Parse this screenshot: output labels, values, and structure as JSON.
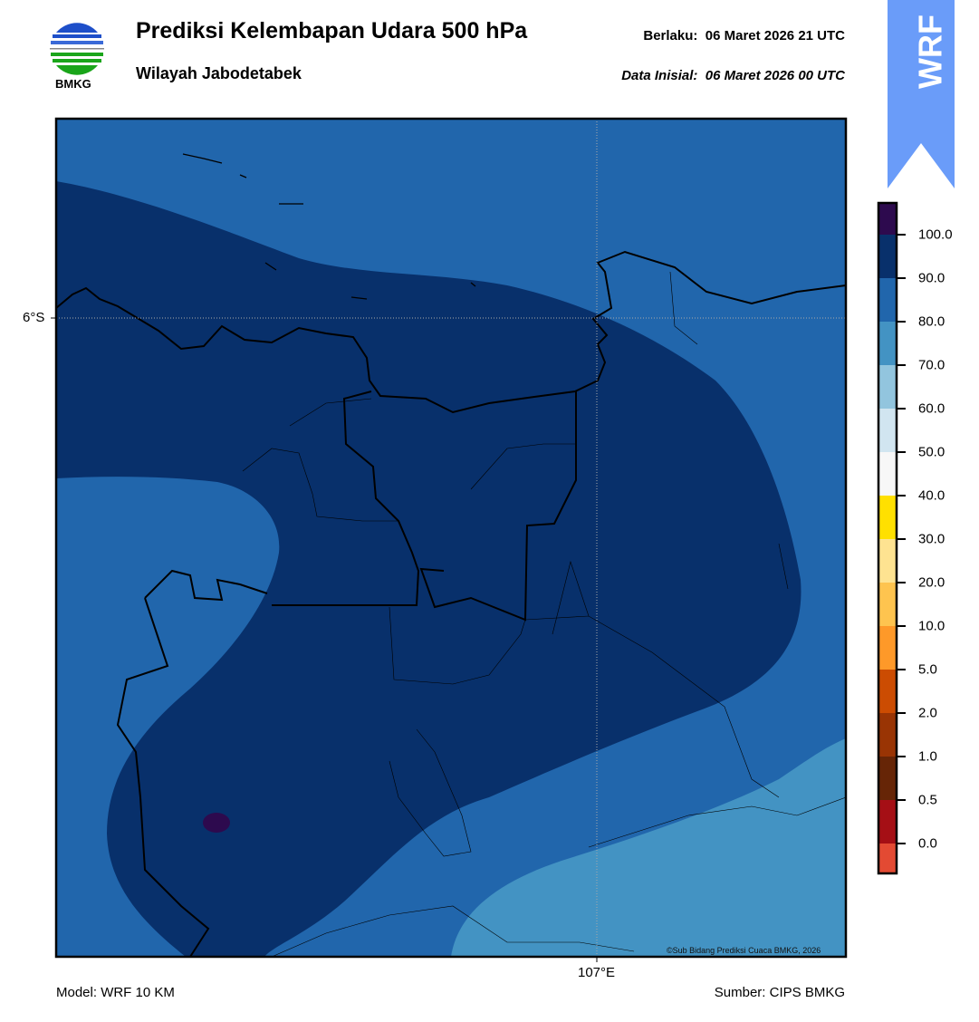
{
  "header": {
    "logo_text": "BMKG",
    "title": "Prediksi Kelembapan Udara 500 hPa",
    "subtitle": "Wilayah Jabodetabek",
    "valid_label": "Berlaku:",
    "valid_time": "06 Maret 2026 21 UTC",
    "init_label": "Data Inisial:",
    "init_time": "06 Maret 2026 00 UTC"
  },
  "badge": {
    "text": "WRF",
    "color": "#6a9cf9"
  },
  "map": {
    "lat_label": "6°S",
    "lon_label": "107°E",
    "copyright": "©Sub Bidang Prediksi Cuaca BMKG, 2026",
    "field_colors": {
      "80-90": "#2166ac",
      "90-100": "#08306b",
      "70-80": "#4393c3",
      "100+": "#2d0a4e"
    }
  },
  "colorbar": {
    "labels": [
      "100.0",
      "90.0",
      "80.0",
      "70.0",
      "60.0",
      "50.0",
      "40.0",
      "30.0",
      "20.0",
      "10.0",
      "5.0",
      "2.0",
      "1.0",
      "0.5",
      "0.0"
    ],
    "colors": [
      "#2d0a4e",
      "#08306b",
      "#2166ac",
      "#4393c3",
      "#92c5de",
      "#d1e5f0",
      "#f7f7f7",
      "#ffe000",
      "#fee391",
      "#fec44f",
      "#fe9929",
      "#cc4c02",
      "#993404",
      "#662506",
      "#a50f15",
      "#e34a33"
    ]
  },
  "footer": {
    "model": "Model: WRF 10 KM",
    "source": "Sumber: CIPS BMKG"
  }
}
